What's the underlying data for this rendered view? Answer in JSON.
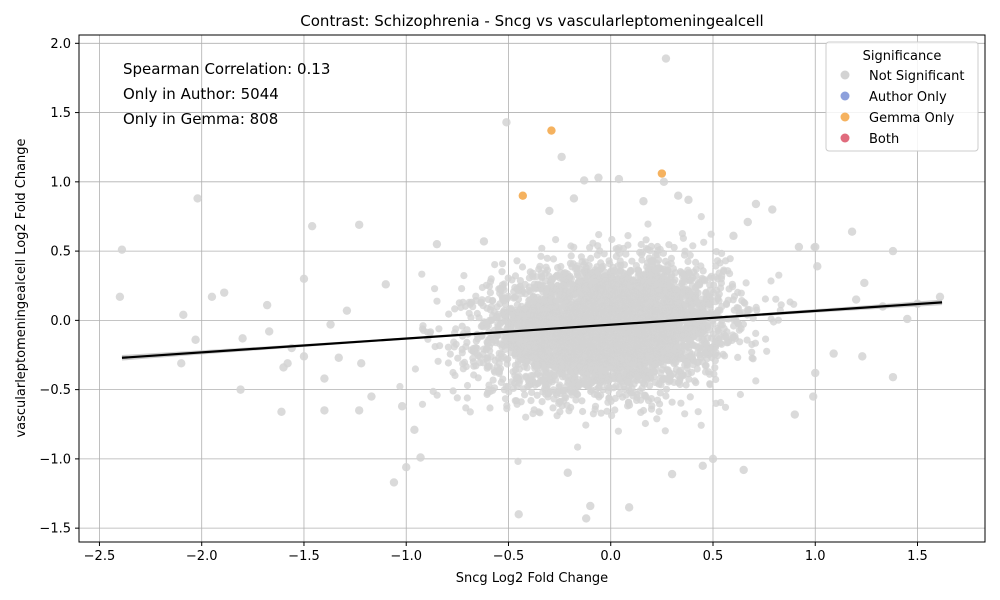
{
  "chart_data": {
    "type": "scatter",
    "title": "Contrast: Schizophrenia - Sncg vs vascularleptomeningealcell",
    "xlabel": "Sncg Log2 Fold Change",
    "ylabel": "vascularleptomeningealcell Log2 Fold Change",
    "xlim": [
      -2.6,
      1.83
    ],
    "ylim": [
      -1.6,
      2.06
    ],
    "x_ticks": [
      -2.5,
      -2.0,
      -1.5,
      -1.0,
      -0.5,
      0.0,
      0.5,
      1.0,
      1.5
    ],
    "x_tick_labels": [
      "−2.5",
      "−2.0",
      "−1.5",
      "−1.0",
      "−0.5",
      "0.0",
      "0.5",
      "1.0",
      "1.5"
    ],
    "y_ticks": [
      -1.5,
      -1.0,
      -0.5,
      0.0,
      0.5,
      1.0,
      1.5,
      2.0
    ],
    "y_tick_labels": [
      "−1.5",
      "−1.0",
      "−0.5",
      "0.0",
      "0.5",
      "1.0",
      "1.5",
      "2.0"
    ],
    "grid": true,
    "annotations": [
      "Spearman Correlation: 0.13",
      "Only in Author: 5044",
      "Only in Gemma: 808"
    ],
    "legend": {
      "title": "Significance",
      "placement": "top-right",
      "entries": [
        {
          "label": "Not Significant",
          "color": "#d3d3d3"
        },
        {
          "label": "Author Only",
          "color": "#8da0dc"
        },
        {
          "label": "Gemma Only",
          "color": "#f5b25f"
        },
        {
          "label": "Both",
          "color": "#e06b7d"
        }
      ]
    },
    "regression": {
      "x": [
        -2.39,
        1.62
      ],
      "y": [
        -0.27,
        0.13
      ],
      "color": "#000000",
      "band_color": "#c8c8c8"
    },
    "cloud": {
      "x_mean": -0.02,
      "x_sd": 0.28,
      "y_mean": -0.05,
      "y_sd": 0.22,
      "count": 5000
    },
    "series": [
      {
        "name": "Not Significant",
        "color": "#d3d3d3",
        "points": [
          [
            0.27,
            1.89
          ],
          [
            -0.51,
            1.43
          ],
          [
            -0.24,
            1.18
          ],
          [
            -2.39,
            0.51
          ],
          [
            -2.02,
            0.88
          ],
          [
            -2.4,
            0.17
          ],
          [
            -1.95,
            0.17
          ],
          [
            -1.89,
            0.2
          ],
          [
            -2.09,
            0.04
          ],
          [
            -2.03,
            -0.14
          ],
          [
            -2.1,
            -0.31
          ],
          [
            -1.8,
            -0.13
          ],
          [
            -1.81,
            -0.5
          ],
          [
            -1.68,
            0.11
          ],
          [
            -1.67,
            -0.08
          ],
          [
            -1.61,
            -0.66
          ],
          [
            -1.6,
            -0.34
          ],
          [
            -1.58,
            -0.31
          ],
          [
            -1.46,
            0.68
          ],
          [
            -1.5,
            0.3
          ],
          [
            -1.56,
            -0.2
          ],
          [
            -1.5,
            -0.26
          ],
          [
            -1.4,
            -0.42
          ],
          [
            -1.4,
            -0.65
          ],
          [
            -1.37,
            -0.03
          ],
          [
            -1.33,
            -0.27
          ],
          [
            -1.29,
            0.07
          ],
          [
            -1.23,
            0.69
          ],
          [
            -1.23,
            -0.65
          ],
          [
            -1.22,
            -0.31
          ],
          [
            -1.17,
            -0.55
          ],
          [
            -1.06,
            -1.17
          ],
          [
            -1.0,
            -1.06
          ],
          [
            -0.96,
            -0.79
          ],
          [
            -0.93,
            -0.99
          ],
          [
            -0.45,
            -1.4
          ],
          [
            -0.12,
            -1.43
          ],
          [
            -0.1,
            -1.34
          ],
          [
            0.09,
            -1.35
          ],
          [
            0.04,
            1.02
          ],
          [
            -0.06,
            1.03
          ],
          [
            -0.13,
            1.01
          ],
          [
            0.26,
            1.0
          ],
          [
            0.79,
            0.8
          ],
          [
            0.71,
            0.84
          ],
          [
            0.67,
            0.71
          ],
          [
            1.0,
            0.53
          ],
          [
            1.01,
            0.39
          ],
          [
            1.18,
            0.64
          ],
          [
            1.38,
            0.5
          ],
          [
            1.2,
            0.15
          ],
          [
            1.24,
            0.27
          ],
          [
            1.33,
            0.1
          ],
          [
            1.45,
            0.01
          ],
          [
            1.38,
            -0.41
          ],
          [
            1.23,
            -0.26
          ],
          [
            1.09,
            -0.24
          ],
          [
            1.0,
            -0.38
          ],
          [
            0.99,
            -0.55
          ],
          [
            0.9,
            -0.68
          ],
          [
            0.65,
            -1.08
          ],
          [
            0.45,
            -1.05
          ],
          [
            0.3,
            -1.11
          ],
          [
            0.5,
            -1.0
          ],
          [
            -0.18,
            0.88
          ],
          [
            -0.3,
            0.79
          ],
          [
            0.16,
            0.86
          ],
          [
            0.38,
            0.87
          ],
          [
            0.33,
            0.9
          ],
          [
            1.61,
            0.17
          ],
          [
            1.5,
            0.12
          ],
          [
            -0.85,
            0.55
          ],
          [
            -1.02,
            -0.62
          ],
          [
            -0.21,
            -1.1
          ],
          [
            0.6,
            0.61
          ],
          [
            -0.62,
            0.57
          ],
          [
            0.92,
            0.53
          ],
          [
            -1.1,
            0.26
          ]
        ]
      },
      {
        "name": "Gemma Only",
        "color": "#f5b25f",
        "points": [
          [
            -0.29,
            1.37
          ],
          [
            0.25,
            1.06
          ],
          [
            -0.43,
            0.9
          ]
        ]
      }
    ]
  }
}
